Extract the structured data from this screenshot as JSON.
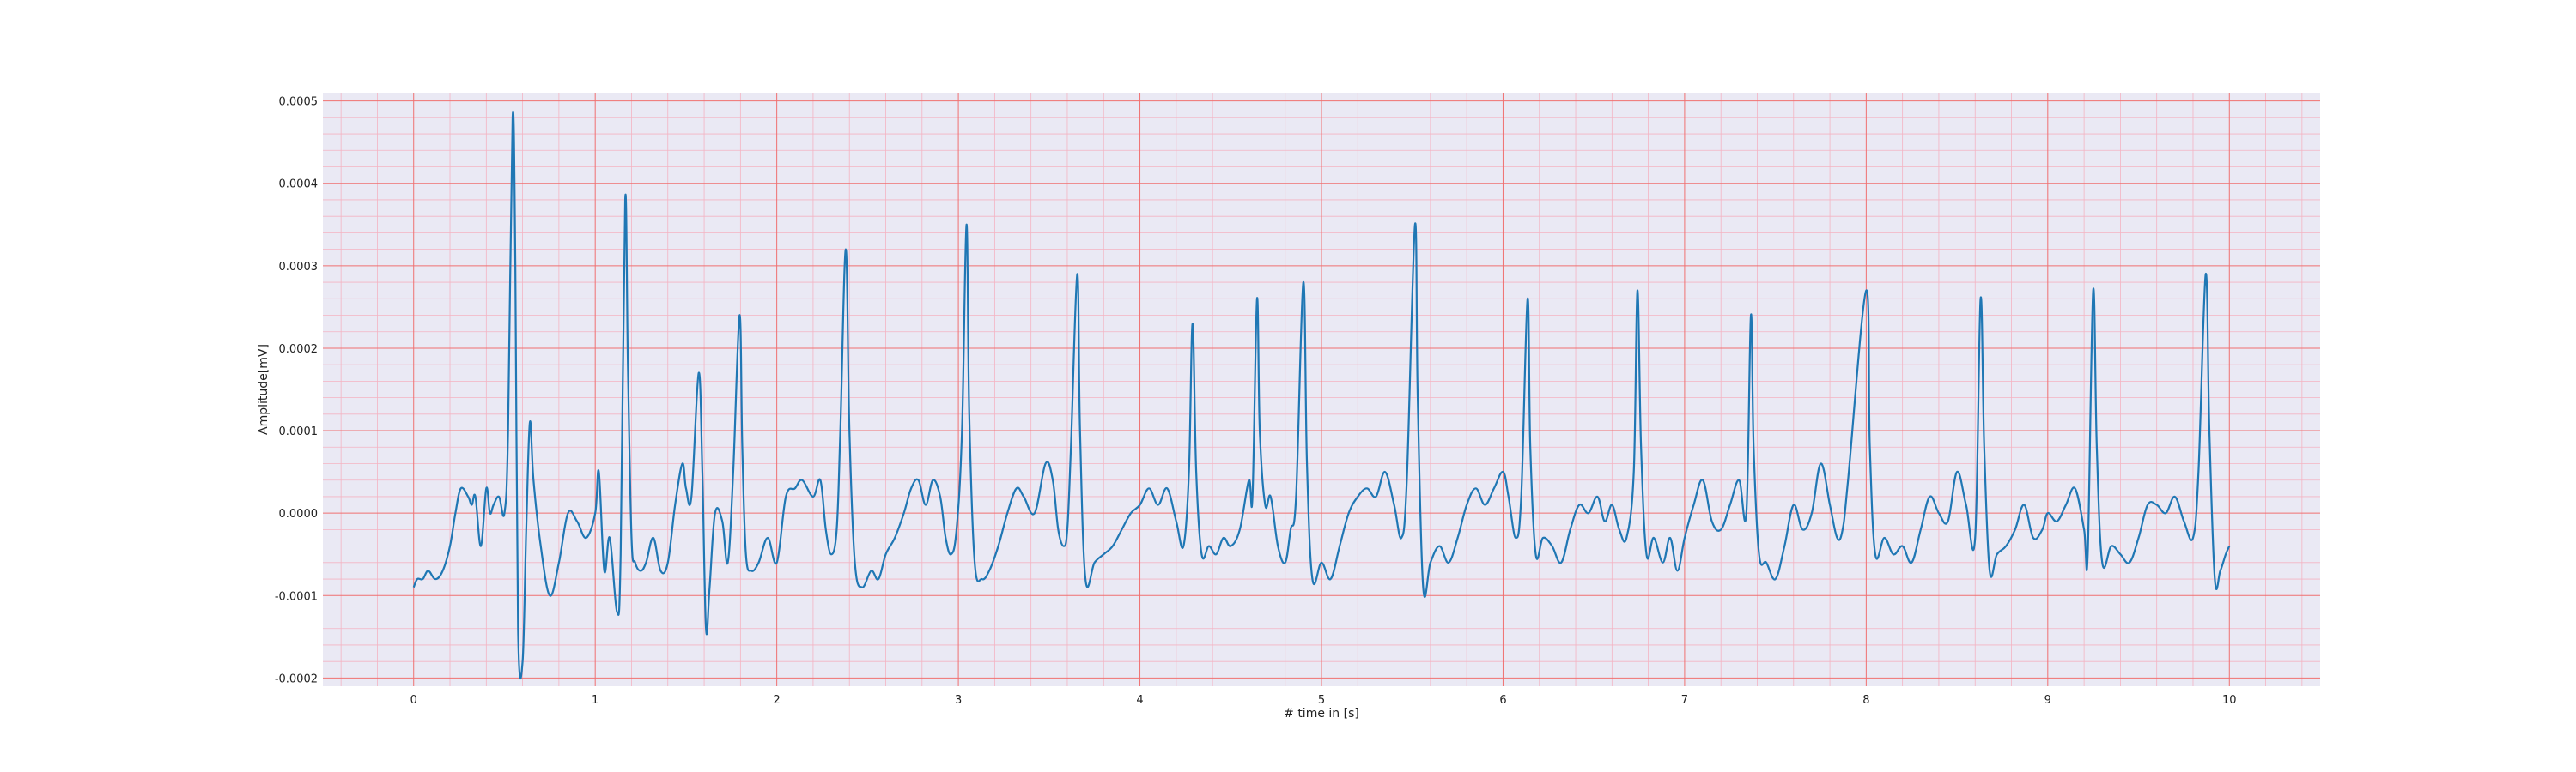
{
  "chart_data": {
    "type": "line",
    "title": "",
    "xlabel": "# time in [s]",
    "ylabel": "Amplitude[mV]",
    "xlim": [
      -0.5,
      10.5
    ],
    "ylim": [
      -0.00021,
      0.00051
    ],
    "xticks": [
      0,
      1,
      2,
      3,
      4,
      5,
      6,
      7,
      8,
      9,
      10
    ],
    "xtick_labels": [
      "0",
      "1",
      "2",
      "3",
      "4",
      "5",
      "6",
      "7",
      "8",
      "9",
      "10"
    ],
    "yticks": [
      -0.0002,
      -0.0001,
      0.0,
      0.0001,
      0.0002,
      0.0003,
      0.0004,
      0.0005
    ],
    "ytick_labels": [
      "-0.0002",
      "-0.0001",
      "0.0000",
      "0.0001",
      "0.0002",
      "0.0003",
      "0.0004",
      "0.0005"
    ],
    "grid": true,
    "minor_grid": true,
    "colors": {
      "line": "#1f77b4",
      "background": "#eae9f4",
      "major_grid": "#f07070",
      "minor_grid": "#f4b3c2"
    },
    "series": [
      {
        "values": [
          [
            0.0,
            -9e-05
          ],
          [
            0.02,
            -8e-05
          ],
          [
            0.05,
            -8e-05
          ],
          [
            0.08,
            -7e-05
          ],
          [
            0.12,
            -8e-05
          ],
          [
            0.16,
            -7e-05
          ],
          [
            0.2,
            -4e-05
          ],
          [
            0.23,
            0.0
          ],
          [
            0.26,
            3e-05
          ],
          [
            0.3,
            2e-05
          ],
          [
            0.32,
            1e-05
          ],
          [
            0.34,
            2e-05
          ],
          [
            0.37,
            -4e-05
          ],
          [
            0.4,
            3e-05
          ],
          [
            0.42,
            0.0
          ],
          [
            0.44,
            1e-05
          ],
          [
            0.47,
            2e-05
          ],
          [
            0.5,
            0.0
          ],
          [
            0.52,
            0.0001
          ],
          [
            0.545,
            0.00048
          ],
          [
            0.56,
            0.0003
          ],
          [
            0.575,
            -0.00014
          ],
          [
            0.6,
            -0.00018
          ],
          [
            0.62,
            -2e-05
          ],
          [
            0.64,
            0.00011
          ],
          [
            0.66,
            4e-05
          ],
          [
            0.7,
            -4e-05
          ],
          [
            0.75,
            -0.0001
          ],
          [
            0.8,
            -6e-05
          ],
          [
            0.85,
            0.0
          ],
          [
            0.9,
            -1e-05
          ],
          [
            0.95,
            -3e-05
          ],
          [
            1.0,
            0.0
          ],
          [
            1.02,
            5e-05
          ],
          [
            1.05,
            -7e-05
          ],
          [
            1.08,
            -3e-05
          ],
          [
            1.12,
            -0.00012
          ],
          [
            1.14,
            -5e-05
          ],
          [
            1.165,
            0.00038
          ],
          [
            1.18,
            0.00018
          ],
          [
            1.2,
            -3e-05
          ],
          [
            1.22,
            -6e-05
          ],
          [
            1.25,
            -7e-05
          ],
          [
            1.28,
            -6e-05
          ],
          [
            1.32,
            -3e-05
          ],
          [
            1.36,
            -7e-05
          ],
          [
            1.4,
            -6e-05
          ],
          [
            1.44,
            1e-05
          ],
          [
            1.48,
            6e-05
          ],
          [
            1.5,
            3e-05
          ],
          [
            1.53,
            2e-05
          ],
          [
            1.57,
            0.00017
          ],
          [
            1.59,
            5e-05
          ],
          [
            1.61,
            -0.00014
          ],
          [
            1.63,
            -9e-05
          ],
          [
            1.66,
            0.0
          ],
          [
            1.7,
            -1e-05
          ],
          [
            1.73,
            -6e-05
          ],
          [
            1.76,
            5e-05
          ],
          [
            1.795,
            0.00024
          ],
          [
            1.81,
            8e-05
          ],
          [
            1.83,
            -5e-05
          ],
          [
            1.86,
            -7e-05
          ],
          [
            1.9,
            -6e-05
          ],
          [
            1.95,
            -3e-05
          ],
          [
            2.0,
            -6e-05
          ],
          [
            2.05,
            2e-05
          ],
          [
            2.1,
            3e-05
          ],
          [
            2.14,
            4e-05
          ],
          [
            2.2,
            2e-05
          ],
          [
            2.24,
            4e-05
          ],
          [
            2.27,
            -2e-05
          ],
          [
            2.3,
            -5e-05
          ],
          [
            2.33,
            -2e-05
          ],
          [
            2.35,
            0.0001
          ],
          [
            2.38,
            0.00032
          ],
          [
            2.4,
            0.0001
          ],
          [
            2.43,
            -6e-05
          ],
          [
            2.47,
            -9e-05
          ],
          [
            2.52,
            -7e-05
          ],
          [
            2.56,
            -8e-05
          ],
          [
            2.6,
            -5e-05
          ],
          [
            2.65,
            -3e-05
          ],
          [
            2.7,
            0.0
          ],
          [
            2.74,
            3e-05
          ],
          [
            2.78,
            4e-05
          ],
          [
            2.82,
            1e-05
          ],
          [
            2.86,
            4e-05
          ],
          [
            2.9,
            2e-05
          ],
          [
            2.93,
            -3e-05
          ],
          [
            2.96,
            -5e-05
          ],
          [
            2.99,
            -2e-05
          ],
          [
            3.02,
            0.0001
          ],
          [
            3.045,
            0.00035
          ],
          [
            3.06,
            0.00012
          ],
          [
            3.09,
            -6e-05
          ],
          [
            3.13,
            -8e-05
          ],
          [
            3.17,
            -7e-05
          ],
          [
            3.22,
            -4e-05
          ],
          [
            3.27,
            0.0
          ],
          [
            3.32,
            3e-05
          ],
          [
            3.36,
            2e-05
          ],
          [
            3.42,
            0.0
          ],
          [
            3.48,
            6e-05
          ],
          [
            3.52,
            4e-05
          ],
          [
            3.55,
            -2e-05
          ],
          [
            3.58,
            -4e-05
          ],
          [
            3.6,
            -2e-05
          ],
          [
            3.62,
            8e-05
          ],
          [
            3.655,
            0.00029
          ],
          [
            3.67,
            0.0001
          ],
          [
            3.7,
            -8e-05
          ],
          [
            3.75,
            -6e-05
          ],
          [
            3.8,
            -5e-05
          ],
          [
            3.85,
            -4e-05
          ],
          [
            3.9,
            -2e-05
          ],
          [
            3.95,
            0.0
          ],
          [
            4.0,
            1e-05
          ],
          [
            4.05,
            3e-05
          ],
          [
            4.1,
            1e-05
          ],
          [
            4.15,
            3e-05
          ],
          [
            4.2,
            -1e-05
          ],
          [
            4.24,
            -4e-05
          ],
          [
            4.27,
            5e-05
          ],
          [
            4.29,
            0.00023
          ],
          [
            4.31,
            5e-05
          ],
          [
            4.34,
            -5e-05
          ],
          [
            4.38,
            -4e-05
          ],
          [
            4.42,
            -5e-05
          ],
          [
            4.46,
            -3e-05
          ],
          [
            4.5,
            -4e-05
          ],
          [
            4.55,
            -2e-05
          ],
          [
            4.6,
            4e-05
          ],
          [
            4.62,
            2e-05
          ],
          [
            4.645,
            0.00026
          ],
          [
            4.66,
            0.0001
          ],
          [
            4.69,
            1e-05
          ],
          [
            4.72,
            2e-05
          ],
          [
            4.76,
            -4e-05
          ],
          [
            4.8,
            -6e-05
          ],
          [
            4.83,
            -2e-05
          ],
          [
            4.86,
            2e-05
          ],
          [
            4.9,
            0.00028
          ],
          [
            4.92,
            6e-05
          ],
          [
            4.95,
            -8e-05
          ],
          [
            5.0,
            -6e-05
          ],
          [
            5.05,
            -8e-05
          ],
          [
            5.1,
            -4e-05
          ],
          [
            5.15,
            0.0
          ],
          [
            5.2,
            2e-05
          ],
          [
            5.25,
            3e-05
          ],
          [
            5.3,
            2e-05
          ],
          [
            5.35,
            5e-05
          ],
          [
            5.4,
            1e-05
          ],
          [
            5.44,
            -3e-05
          ],
          [
            5.47,
            4e-05
          ],
          [
            5.515,
            0.00035
          ],
          [
            5.53,
            0.00014
          ],
          [
            5.56,
            -9e-05
          ],
          [
            5.6,
            -6e-05
          ],
          [
            5.65,
            -4e-05
          ],
          [
            5.7,
            -6e-05
          ],
          [
            5.75,
            -3e-05
          ],
          [
            5.8,
            1e-05
          ],
          [
            5.85,
            3e-05
          ],
          [
            5.9,
            1e-05
          ],
          [
            5.95,
            3e-05
          ],
          [
            6.0,
            5e-05
          ],
          [
            6.03,
            2e-05
          ],
          [
            6.07,
            -3e-05
          ],
          [
            6.1,
            2e-05
          ],
          [
            6.135,
            0.00026
          ],
          [
            6.15,
            8e-05
          ],
          [
            6.18,
            -5e-05
          ],
          [
            6.22,
            -3e-05
          ],
          [
            6.27,
            -4e-05
          ],
          [
            6.32,
            -6e-05
          ],
          [
            6.37,
            -2e-05
          ],
          [
            6.42,
            1e-05
          ],
          [
            6.47,
            0.0
          ],
          [
            6.52,
            2e-05
          ],
          [
            6.56,
            -1e-05
          ],
          [
            6.6,
            1e-05
          ],
          [
            6.64,
            -2e-05
          ],
          [
            6.68,
            -3e-05
          ],
          [
            6.72,
            5e-05
          ],
          [
            6.74,
            0.00027
          ],
          [
            6.76,
            8e-05
          ],
          [
            6.79,
            -5e-05
          ],
          [
            6.83,
            -3e-05
          ],
          [
            6.88,
            -6e-05
          ],
          [
            6.92,
            -3e-05
          ],
          [
            6.96,
            -7e-05
          ],
          [
            7.0,
            -3e-05
          ],
          [
            7.05,
            1e-05
          ],
          [
            7.1,
            4e-05
          ],
          [
            7.15,
            -1e-05
          ],
          [
            7.2,
            -2e-05
          ],
          [
            7.25,
            1e-05
          ],
          [
            7.3,
            4e-05
          ],
          [
            7.34,
            0.0
          ],
          [
            7.365,
            0.00024
          ],
          [
            7.38,
            8e-05
          ],
          [
            7.41,
            -5e-05
          ],
          [
            7.45,
            -6e-05
          ],
          [
            7.5,
            -8e-05
          ],
          [
            7.55,
            -4e-05
          ],
          [
            7.6,
            1e-05
          ],
          [
            7.65,
            -2e-05
          ],
          [
            7.7,
            0.0
          ],
          [
            7.75,
            6e-05
          ],
          [
            7.8,
            1e-05
          ],
          [
            7.84,
            -3e-05
          ],
          [
            7.87,
            -2e-05
          ],
          [
            7.9,
            4e-05
          ],
          [
            8.0,
            0.00027
          ],
          [
            8.02,
            8e-05
          ],
          [
            8.05,
            -5e-05
          ],
          [
            8.1,
            -3e-05
          ],
          [
            8.15,
            -5e-05
          ],
          [
            8.2,
            -4e-05
          ],
          [
            8.25,
            -6e-05
          ],
          [
            8.3,
            -2e-05
          ],
          [
            8.35,
            2e-05
          ],
          [
            8.4,
            0.0
          ],
          [
            8.45,
            -1e-05
          ],
          [
            8.5,
            5e-05
          ],
          [
            8.55,
            1e-05
          ],
          [
            8.6,
            -3e-05
          ],
          [
            8.63,
            0.00026
          ],
          [
            8.65,
            8e-05
          ],
          [
            8.68,
            -7e-05
          ],
          [
            8.72,
            -5e-05
          ],
          [
            8.77,
            -4e-05
          ],
          [
            8.82,
            -2e-05
          ],
          [
            8.87,
            1e-05
          ],
          [
            8.92,
            -3e-05
          ],
          [
            8.97,
            -2e-05
          ],
          [
            9.0,
            0.0
          ],
          [
            9.05,
            -1e-05
          ],
          [
            9.1,
            1e-05
          ],
          [
            9.15,
            3e-05
          ],
          [
            9.2,
            -2e-05
          ],
          [
            9.22,
            -5e-05
          ],
          [
            9.25,
            0.00027
          ],
          [
            9.27,
            8e-05
          ],
          [
            9.3,
            -6e-05
          ],
          [
            9.35,
            -4e-05
          ],
          [
            9.4,
            -5e-05
          ],
          [
            9.45,
            -6e-05
          ],
          [
            9.5,
            -3e-05
          ],
          [
            9.55,
            1e-05
          ],
          [
            9.6,
            1e-05
          ],
          [
            9.65,
            0.0
          ],
          [
            9.7,
            2e-05
          ],
          [
            9.75,
            -1e-05
          ],
          [
            9.8,
            -3e-05
          ],
          [
            9.83,
            5e-05
          ],
          [
            9.87,
            0.00029
          ],
          [
            9.89,
            0.0001
          ],
          [
            9.92,
            -8e-05
          ],
          [
            9.95,
            -7e-05
          ],
          [
            9.98,
            -5e-05
          ],
          [
            10.0,
            -4e-05
          ]
        ]
      }
    ]
  }
}
